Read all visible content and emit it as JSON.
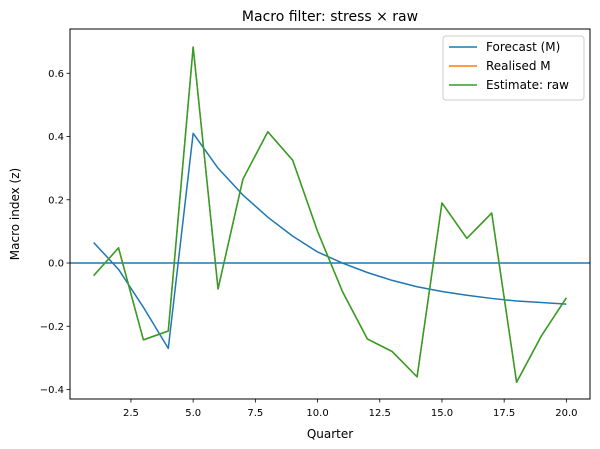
{
  "chart_data": {
    "type": "line",
    "title": "Macro filter: stress × raw",
    "xlabel": "Quarter",
    "ylabel": "Macro index (z)",
    "xlim": [
      0.05,
      20.95
    ],
    "ylim": [
      -0.43,
      0.74
    ],
    "xticks": [
      2.5,
      5.0,
      7.5,
      10.0,
      12.5,
      15.0,
      17.5,
      20.0
    ],
    "xtick_labels": [
      "2.5",
      "5.0",
      "7.5",
      "10.0",
      "12.5",
      "15.0",
      "17.5",
      "20.0"
    ],
    "yticks": [
      -0.4,
      -0.2,
      0.0,
      0.2,
      0.4,
      0.6
    ],
    "ytick_labels": [
      "−0.4",
      "−0.2",
      "0.0",
      "0.2",
      "0.4",
      "0.6"
    ],
    "grid": false,
    "legend_position": "top-right",
    "hline": {
      "y": 0.0,
      "color": "#1f77b4"
    },
    "x": [
      1,
      2,
      3,
      4,
      5,
      6,
      7,
      8,
      9,
      10,
      11,
      12,
      13,
      14,
      15,
      16,
      17,
      18,
      19,
      20
    ],
    "series": [
      {
        "name": "Forecast (M)",
        "color": "#1f77b4",
        "values": [
          0.065,
          -0.02,
          -0.14,
          -0.27,
          0.41,
          0.3,
          0.215,
          0.145,
          0.085,
          0.035,
          0.0,
          -0.03,
          -0.055,
          -0.075,
          -0.09,
          -0.102,
          -0.112,
          -0.12,
          -0.125,
          -0.13
        ]
      },
      {
        "name": "Realised M",
        "color": "#ff7f0e",
        "values": [
          -0.04,
          0.048,
          -0.243,
          -0.215,
          0.683,
          -0.082,
          0.265,
          0.415,
          0.325,
          0.1,
          -0.09,
          -0.24,
          -0.28,
          -0.36,
          0.19,
          0.078,
          0.158,
          -0.377,
          -0.23,
          -0.11
        ]
      },
      {
        "name": "Estimate: raw",
        "color": "#2ca02c",
        "values": [
          -0.04,
          0.048,
          -0.243,
          -0.215,
          0.683,
          -0.082,
          0.265,
          0.415,
          0.325,
          0.1,
          -0.09,
          -0.24,
          -0.28,
          -0.36,
          0.19,
          0.078,
          0.158,
          -0.377,
          -0.23,
          -0.11
        ]
      }
    ]
  }
}
